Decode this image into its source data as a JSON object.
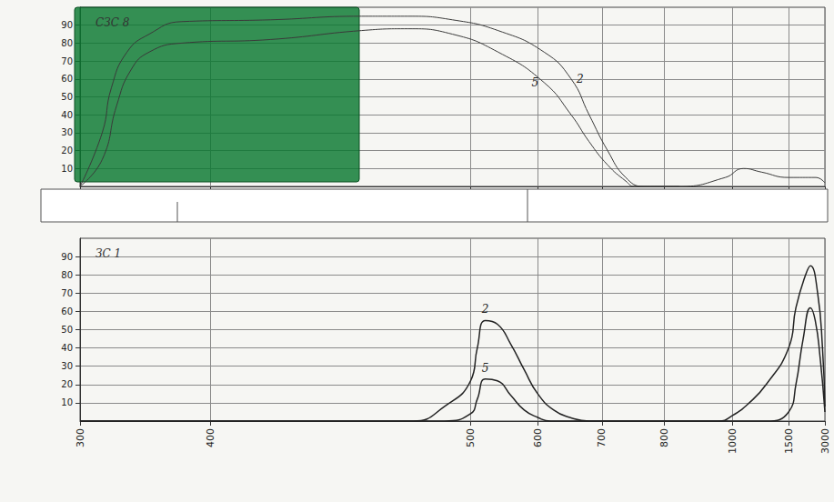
{
  "chart_data": [
    {
      "type": "line",
      "title": "СЗС 8",
      "xlim": [
        300,
        3000
      ],
      "xticks": [
        300,
        400,
        500,
        600,
        700,
        800,
        1000,
        1500,
        3000
      ],
      "ylim": [
        0,
        100
      ],
      "yticks": [
        10,
        20,
        30,
        40,
        50,
        60,
        70,
        80,
        90
      ],
      "grid": true,
      "tick_labels": "y",
      "series": [
        {
          "name": "2",
          "color": "#3a3a3a",
          "x": [
            300,
            317,
            324,
            336,
            353,
            378,
            423,
            458,
            476,
            493,
            541,
            610,
            652,
            680,
            709,
            738,
            767,
            845,
            979,
            1097,
            1258,
            1500,
            2625,
            3000
          ],
          "values": [
            0,
            30,
            55,
            75,
            85,
            92,
            93,
            95,
            95,
            93,
            87,
            75,
            60,
            40,
            20,
            5,
            0,
            0,
            5,
            10,
            8,
            5,
            5,
            2
          ]
        },
        {
          "name": "5",
          "color": "#3a3a3a",
          "x": [
            300,
            317,
            328,
            339,
            353,
            378,
            423,
            458,
            476,
            493,
            541,
            610,
            652,
            680,
            709,
            738,
            752,
            845
          ],
          "values": [
            0,
            15,
            45,
            65,
            75,
            80,
            82,
            87,
            88,
            85,
            75,
            58,
            40,
            25,
            12,
            3,
            0,
            0
          ]
        }
      ]
    },
    {
      "type": "line",
      "title": "ЗС 1",
      "xlim": [
        300,
        3000
      ],
      "xticks": [
        300,
        400,
        500,
        600,
        700,
        800,
        1000,
        1500,
        3000
      ],
      "ylim": [
        0,
        100
      ],
      "yticks": [
        10,
        20,
        30,
        40,
        50,
        60,
        70,
        80,
        90
      ],
      "grid": true,
      "series": [
        {
          "name": "2",
          "color": "#222222",
          "x": [
            300,
            478,
            490,
            500,
            510,
            522,
            540,
            560,
            580,
            600,
            625,
            650,
            680,
            960,
            1000,
            1150,
            1300,
            1500,
            1800,
            2200,
            2400,
            2700,
            2900,
            3000
          ],
          "values": [
            0,
            0,
            8,
            22,
            40,
            55,
            53,
            42,
            28,
            15,
            6,
            2,
            0,
            0,
            3,
            10,
            20,
            40,
            62,
            80,
            85,
            70,
            40,
            8
          ]
        },
        {
          "name": "5",
          "color": "#222222",
          "x": [
            300,
            490,
            500,
            510,
            522,
            540,
            560,
            580,
            600,
            620,
            1300,
            1500,
            1800,
            2100,
            2400,
            2600,
            2800,
            3000
          ],
          "values": [
            0,
            0,
            4,
            12,
            23,
            22,
            14,
            6,
            2,
            0,
            0,
            5,
            20,
            45,
            62,
            55,
            35,
            5
          ]
        }
      ]
    }
  ]
}
